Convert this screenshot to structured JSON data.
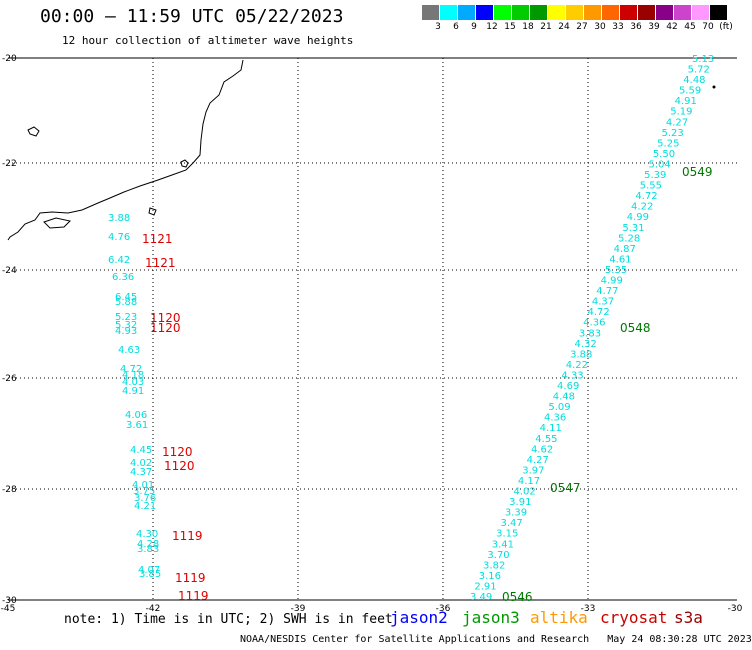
{
  "header": {
    "title": "00:00 – 11:59 UTC 05/22/2023",
    "subtitle": "12 hour collection of altimeter wave heights"
  },
  "legend": {
    "colors": [
      "#777777",
      "#00ffff",
      "#00aaff",
      "#0000ff",
      "#00ff00",
      "#00cc00",
      "#009900",
      "#ffff00",
      "#ffcc00",
      "#ff9900",
      "#ff6600",
      "#cc0000",
      "#990000",
      "#880088",
      "#cc44cc",
      "#ff99ff",
      "#000000"
    ],
    "labels": [
      "3",
      "6",
      "9",
      "12",
      "15",
      "18",
      "21",
      "24",
      "27",
      "30",
      "33",
      "36",
      "39",
      "42",
      "45",
      "70",
      "(ft)"
    ]
  },
  "axes": {
    "lon_labels": [
      "-45",
      "-42",
      "-39",
      "-36",
      "-33",
      "-30"
    ],
    "lat_labels": [
      "-20",
      "-22",
      "-24",
      "-26",
      "-28",
      "-30"
    ]
  },
  "west_track": {
    "color": "#00dddd",
    "values": [
      "3.88",
      "4.76",
      "6.42",
      "6.36",
      "6.45",
      "5.88",
      "5.23",
      "5.32",
      "4.93",
      "4.63",
      "4.72",
      "4.18",
      "4.03",
      "4.91",
      "4.06",
      "3.61",
      "4.45",
      "4.02",
      "4.37",
      "4.01",
      "3.75",
      "3.76",
      "4.21",
      "4.30",
      "4.28",
      "3.83",
      "4.07",
      "3.85"
    ],
    "times": [
      "1121",
      "1121",
      "1120",
      "1120",
      "1120",
      "1120",
      "1119",
      "1119",
      "1119"
    ]
  },
  "east_track": {
    "color": "#00dddd",
    "values": [
      "5.13",
      "5.72",
      "4.48",
      "5.59",
      "4.91",
      "5.19",
      "4.27",
      "5.23",
      "5.25",
      "5.50",
      "5.04",
      "5.39",
      "5.55",
      "4.72",
      "4.22",
      "4.99",
      "5.31",
      "5.28",
      "4.87",
      "4.61",
      "5.35",
      "4.99",
      "4.77",
      "4.37",
      "4.72",
      "4.36",
      "3.83",
      "4.32",
      "3.88",
      "4.22",
      "4.33",
      "4.69",
      "4.48",
      "5.09",
      "4.36",
      "4.11",
      "4.55",
      "4.62",
      "4.27",
      "3.97",
      "4.17",
      "4.02",
      "3.91",
      "3.39",
      "3.47",
      "3.15",
      "3.41",
      "3.70",
      "3.82",
      "3.16",
      "2.91",
      "3.49"
    ],
    "times": [
      "0549",
      "0548",
      "0547",
      "0546"
    ]
  },
  "note": "note: 1) Time is in UTC; 2) SWH is in feet",
  "satellites": [
    {
      "name": "jason2",
      "color": "#0000ff"
    },
    {
      "name": "jason3",
      "color": "#009900"
    },
    {
      "name": "altika",
      "color": "#ff9900"
    },
    {
      "name": "cryosat",
      "color": "#cc0000"
    },
    {
      "name": "s3a",
      "color": "#990000"
    }
  ],
  "footer": "NOAA/NESDIS Center for Satellite Applications and Research   May 24 08:30:28 UTC 2023"
}
